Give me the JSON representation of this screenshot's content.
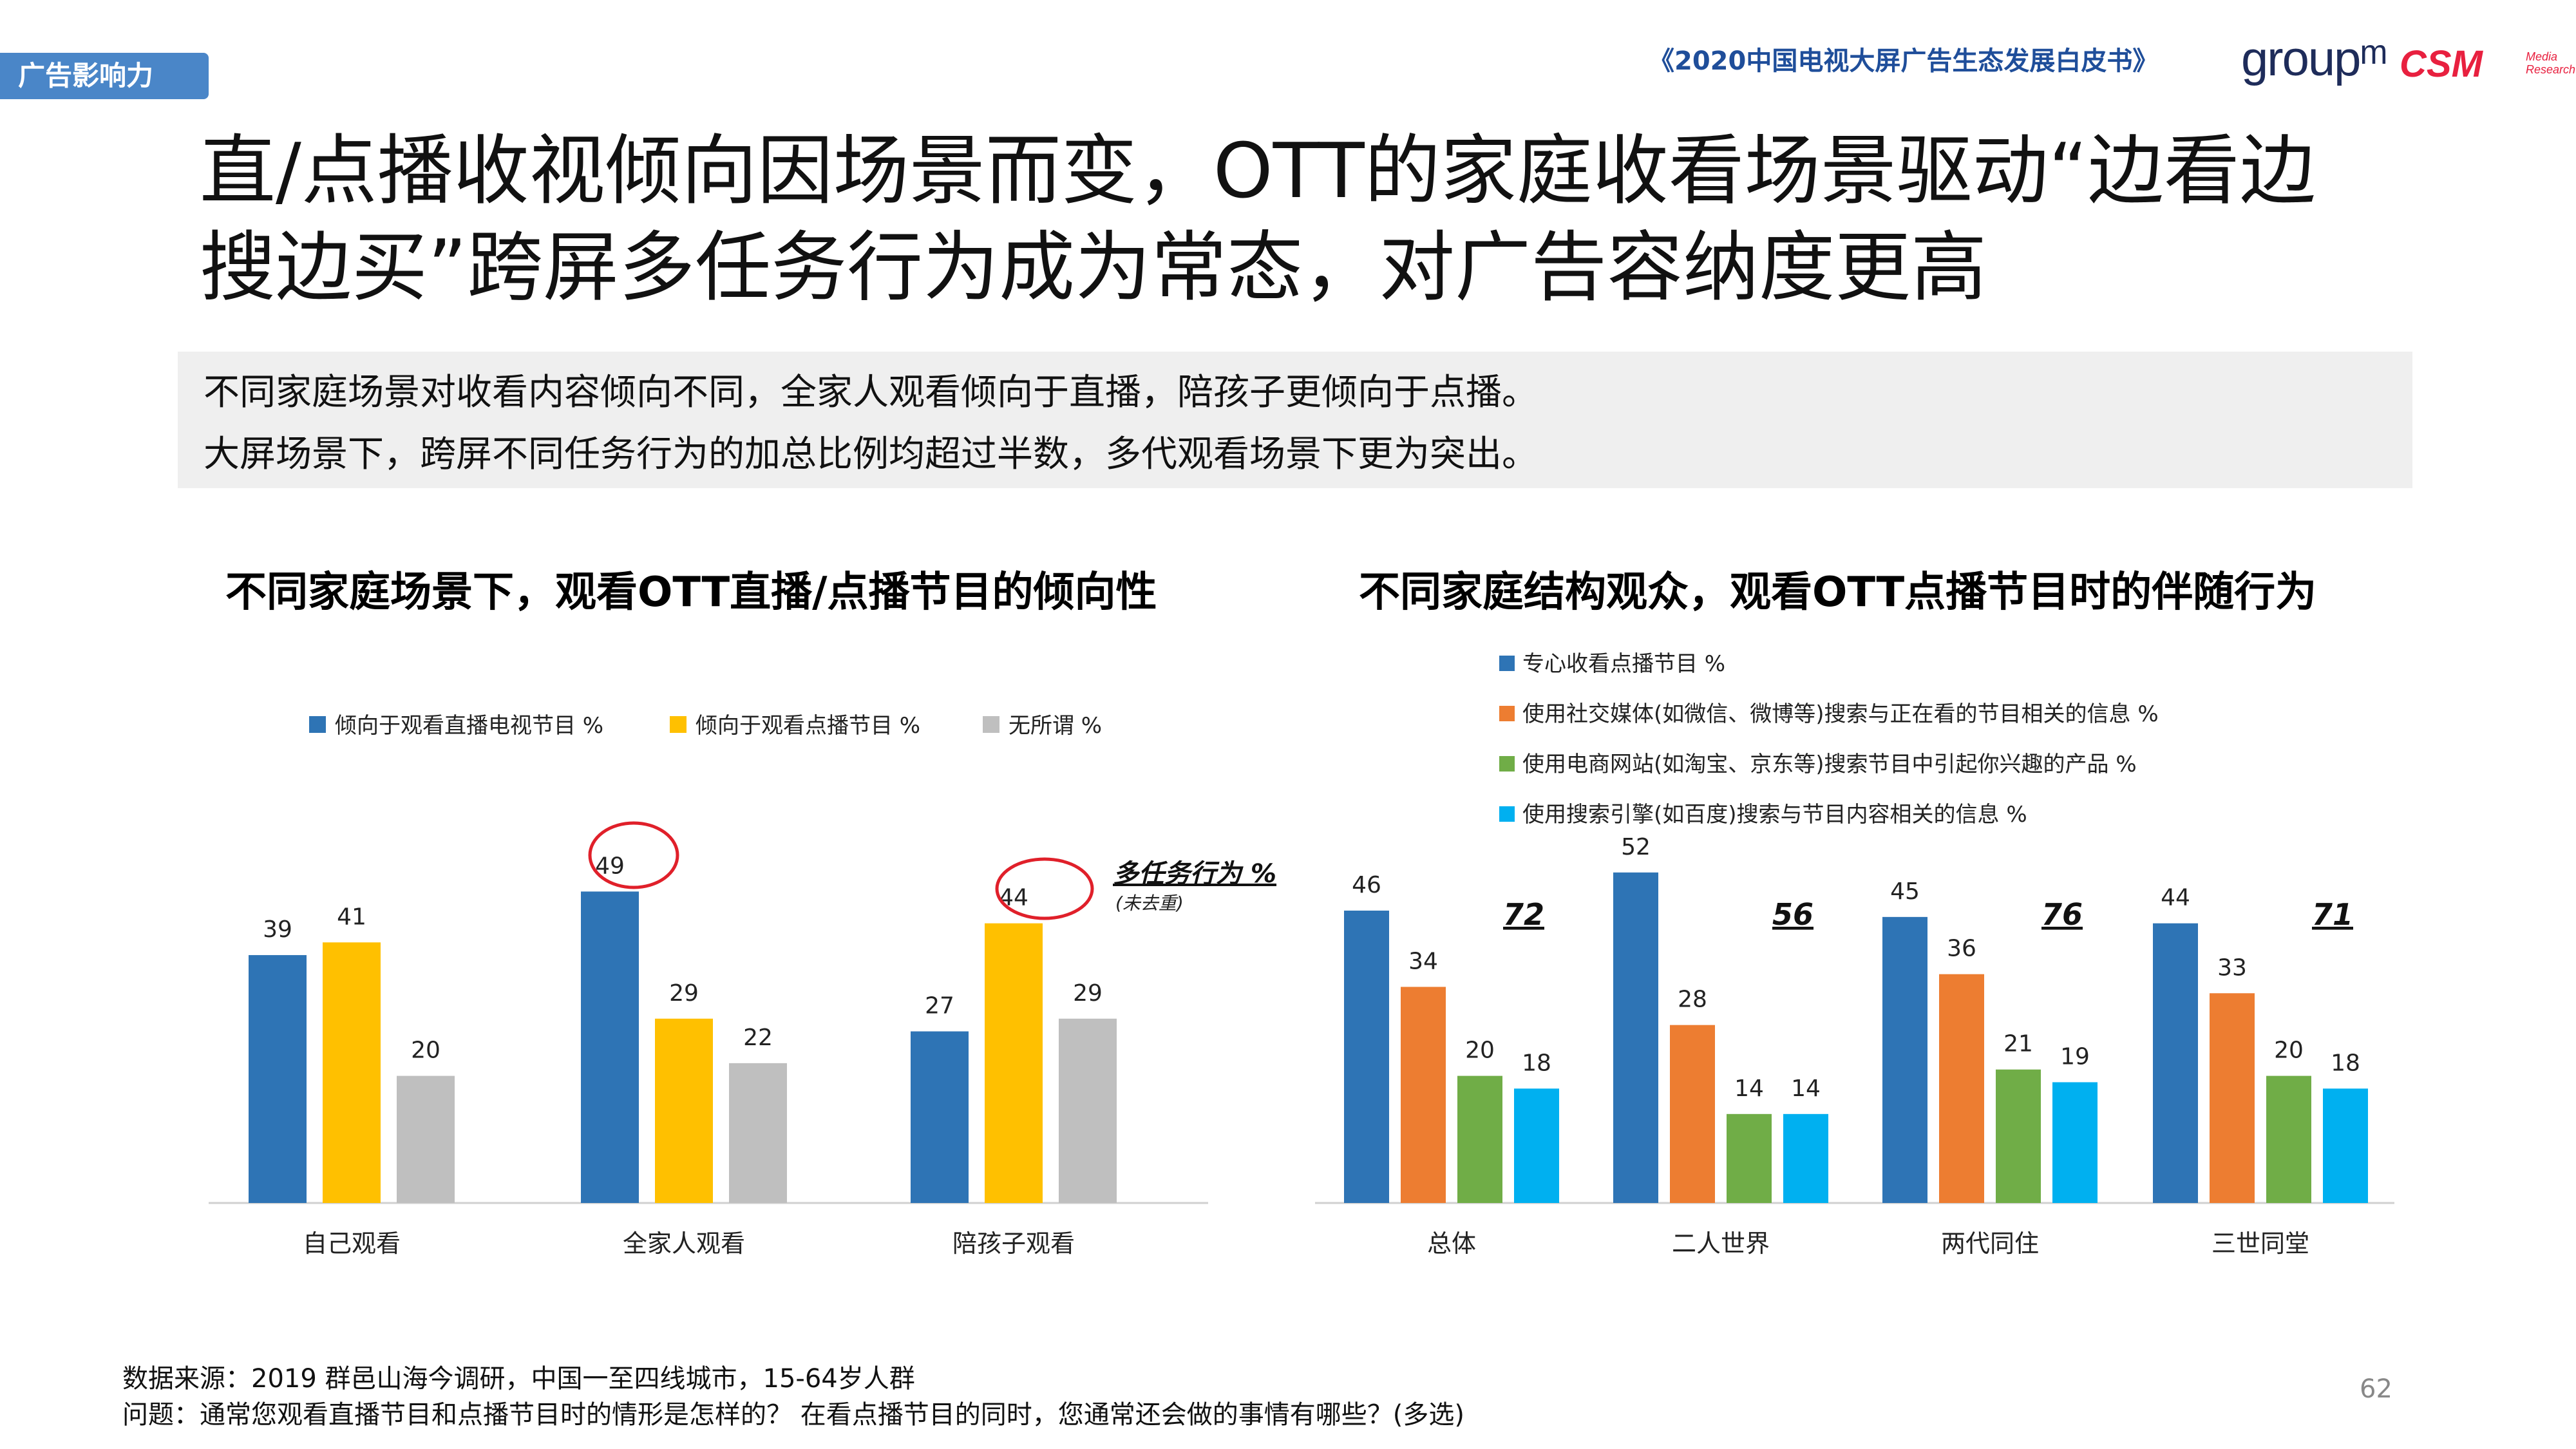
{
  "header": {
    "section_tag": "广告影响力",
    "report_title": "《2020中国电视大屏广告生态发展白皮书》",
    "logo_groupm": "groupᵐ",
    "logo_csm": "CSM",
    "logo_csm_sub": "Media Research"
  },
  "title": {
    "line1": "直/点播收视倾向因场景而变，OTT的家庭收看场景驱动“边看边",
    "line2": "搜边买”跨屏多任务行为成为常态，对广告容纳度更高"
  },
  "summary": {
    "line1": "不同家庭场景对收看内容倾向不同，全家人观看倾向于直播，陪孩子更倾向于点播。",
    "line2": "大屏场景下，跨屏不同任务行为的加总比例均超过半数，多代观看场景下更为突出。"
  },
  "chart_data": [
    {
      "type": "bar",
      "title": "不同家庭场景下，观看OTT直播/点播节目的倾向性",
      "categories": [
        "自己观看",
        "全家人观看",
        "陪孩子观看"
      ],
      "series": [
        {
          "name": "倾向于观看直播电视节目 %",
          "color": "#2e74b5",
          "values": [
            39,
            49,
            27
          ]
        },
        {
          "name": "倾向于观看点播节目 %",
          "color": "#ffc000",
          "values": [
            41,
            29,
            44
          ]
        },
        {
          "name": "无所谓 %",
          "color": "#bfbfbf",
          "values": [
            20,
            22,
            29
          ]
        }
      ],
      "legend": "top",
      "highlighted": [
        "全家人观看 / 倾向于观看直播电视节目 %",
        "陪孩子观看 / 倾向于观看点播节目 %"
      ]
    },
    {
      "type": "bar",
      "title": "不同家庭结构观众，观看OTT点播节目时的伴随行为",
      "categories": [
        "总体",
        "二人世界",
        "两代同住",
        "三世同堂"
      ],
      "series": [
        {
          "name": "专心收看点播节目 %",
          "color": "#2e74b5",
          "values": [
            46,
            52,
            45,
            44
          ]
        },
        {
          "name": "使用社交媒体(如微信、微博等)搜索与正在看的节目相关的信息 %",
          "color": "#ed7d31",
          "values": [
            34,
            28,
            36,
            33
          ]
        },
        {
          "name": "使用电商网站(如淘宝、京东等)搜索节目中引起你兴趣的产品 %",
          "color": "#70ad47",
          "values": [
            20,
            14,
            21,
            20
          ]
        },
        {
          "name": "使用搜索引擎(如百度)搜索与节目内容相关的信息 %",
          "color": "#00b0f0",
          "values": [
            18,
            14,
            19,
            18
          ]
        }
      ],
      "multitask_label": "多任务行为 %",
      "multitask_sub": "(未去重)",
      "multitask_totals": [
        72,
        56,
        76,
        71
      ],
      "legend": "top"
    }
  ],
  "footer": {
    "source": "数据来源：2019 群邑山海今调研，中国一至四线城市，15-64岁人群",
    "question": "问题：通常您观看直播节目和点播节目时的情形是怎样的？  在看点播节目的同时，您通常还会做的事情有哪些？(多选)",
    "page_number": "62"
  }
}
